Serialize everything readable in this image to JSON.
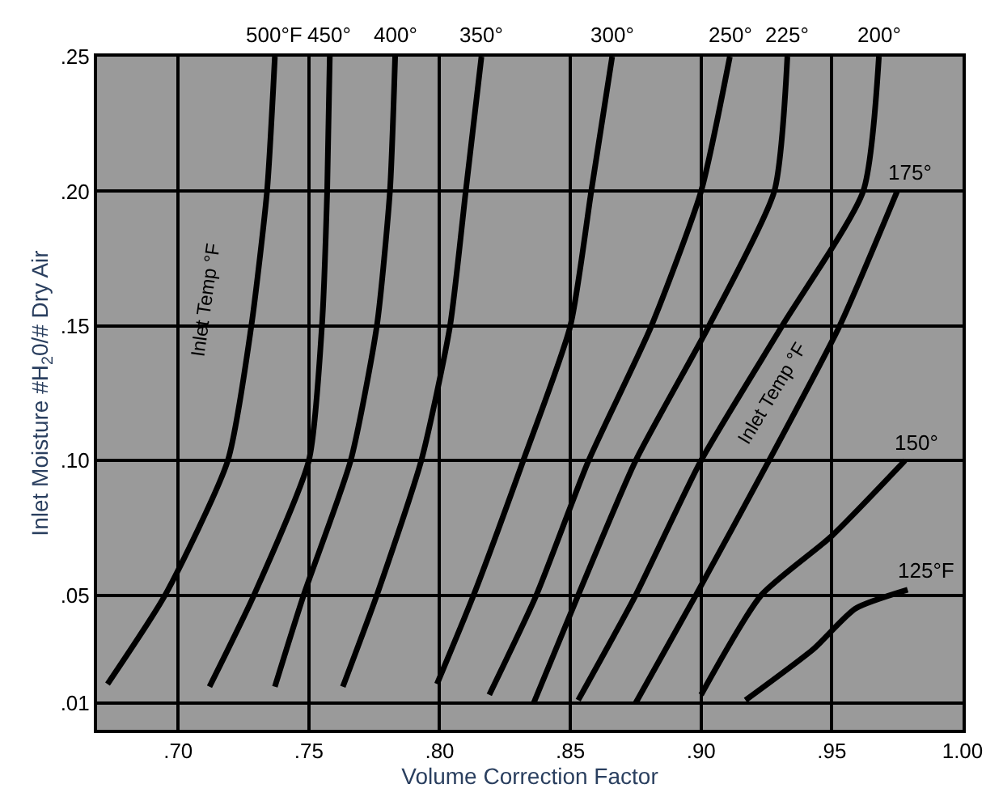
{
  "chart_data": {
    "type": "line",
    "xlabel": "Volume Correction Factor",
    "ylabel": "Inlet Moisture #H$_{2}$0/# Dry Air",
    "xlim": [
      0.669,
      1.0
    ],
    "ylim": [
      0,
      0.25
    ],
    "xticks": [
      {
        "value": 0.7,
        "label": ".70"
      },
      {
        "value": 0.75,
        "label": ".75"
      },
      {
        "value": 0.8,
        "label": ".80"
      },
      {
        "value": 0.85,
        "label": ".85"
      },
      {
        "value": 0.9,
        "label": ".90"
      },
      {
        "value": 0.95,
        "label": ".95"
      },
      {
        "value": 1.0,
        "label": "1.00"
      }
    ],
    "yticks": [
      {
        "value": 0.01,
        "label": ".01"
      },
      {
        "value": 0.05,
        "label": ".05"
      },
      {
        "value": 0.1,
        "label": ".10"
      },
      {
        "value": 0.15,
        "label": ".15"
      },
      {
        "value": 0.2,
        "label": ".20"
      },
      {
        "value": 0.25,
        "label": ".25"
      }
    ],
    "grid": true,
    "legend": false,
    "marker": "none",
    "line_style": "solid",
    "series": [
      {
        "name": "500°F",
        "color": "#000000",
        "x": [
          0.673,
          0.695,
          0.719,
          0.728,
          0.734,
          0.737
        ],
        "values": [
          0.017,
          0.05,
          0.1,
          0.15,
          0.2,
          0.25
        ]
      },
      {
        "name": "450°",
        "color": "#000000",
        "x": [
          0.712,
          0.729,
          0.75,
          0.755,
          0.757,
          0.758
        ],
        "values": [
          0.016,
          0.05,
          0.1,
          0.15,
          0.2,
          0.25
        ]
      },
      {
        "name": "400°",
        "color": "#000000",
        "x": [
          0.737,
          0.748,
          0.766,
          0.776,
          0.781,
          0.783
        ],
        "values": [
          0.016,
          0.05,
          0.1,
          0.15,
          0.2,
          0.25
        ]
      },
      {
        "name": "350°",
        "color": "#000000",
        "x": [
          0.763,
          0.776,
          0.793,
          0.804,
          0.81,
          0.816
        ],
        "values": [
          0.016,
          0.05,
          0.1,
          0.15,
          0.2,
          0.25
        ]
      },
      {
        "name": "300°",
        "color": "#000000",
        "x": [
          0.799,
          0.813,
          0.832,
          0.85,
          0.858,
          0.866
        ],
        "values": [
          0.017,
          0.05,
          0.1,
          0.15,
          0.2,
          0.25
        ]
      },
      {
        "name": "250°",
        "color": "#000000",
        "x": [
          0.819,
          0.837,
          0.857,
          0.881,
          0.9,
          0.911
        ],
        "values": [
          0.013,
          0.05,
          0.1,
          0.15,
          0.2,
          0.25
        ]
      },
      {
        "name": "225°",
        "color": "#000000",
        "x": [
          0.836,
          0.853,
          0.875,
          0.903,
          0.928,
          0.933
        ],
        "values": [
          0.01,
          0.05,
          0.1,
          0.15,
          0.2,
          0.25
        ]
      },
      {
        "name": "200°",
        "color": "#000000",
        "x": [
          0.853,
          0.875,
          0.9,
          0.931,
          0.962,
          0.968
        ],
        "values": [
          0.011,
          0.05,
          0.1,
          0.15,
          0.2,
          0.25
        ]
      },
      {
        "name": "175°",
        "color": "#000000",
        "x": [
          0.875,
          0.898,
          0.926,
          0.953,
          0.975
        ],
        "values": [
          0.01,
          0.05,
          0.1,
          0.15,
          0.2
        ]
      },
      {
        "name": "150°",
        "color": "#000000",
        "x": [
          0.9,
          0.923,
          0.95,
          0.978
        ],
        "values": [
          0.013,
          0.05,
          0.072,
          0.1
        ]
      },
      {
        "name": "125°F",
        "color": "#000000",
        "x": [
          0.917,
          0.943,
          0.959,
          0.979
        ],
        "values": [
          0.011,
          0.03,
          0.045,
          0.052
        ]
      }
    ],
    "annotations": [
      "Inlet Temp °F",
      "Inlet Temp °F"
    ]
  }
}
